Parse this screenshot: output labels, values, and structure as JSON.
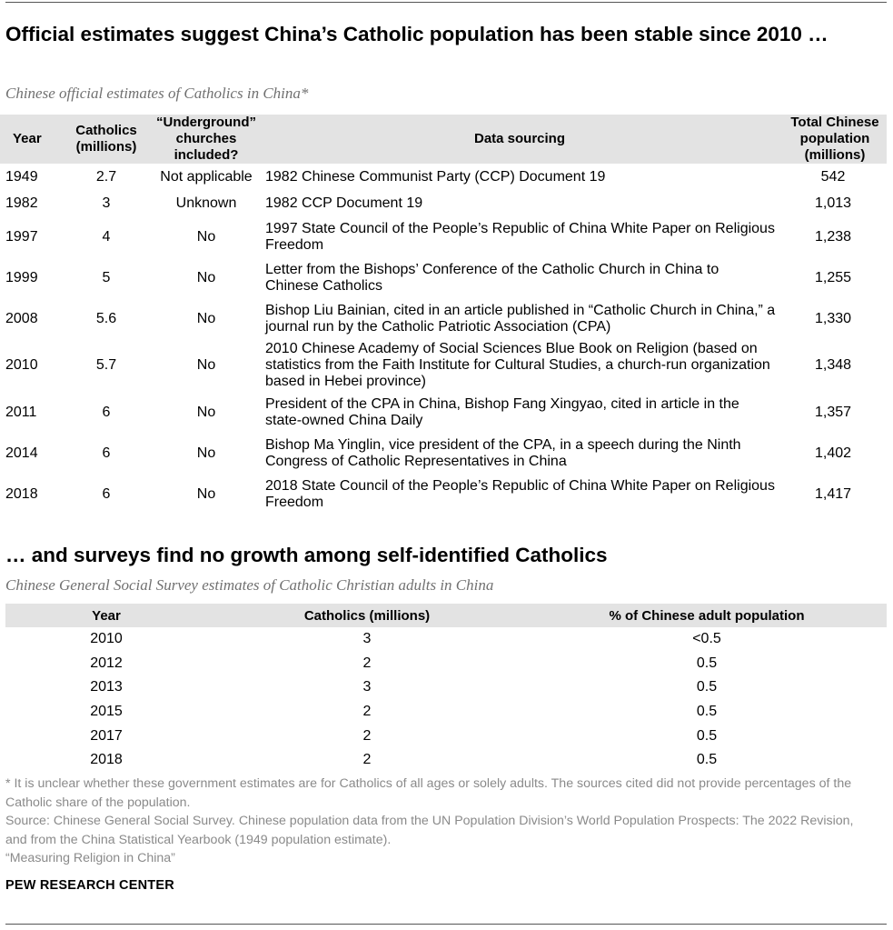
{
  "title": "Official estimates suggest China’s Catholic population has been stable since 2010 …",
  "subtitle": "Chinese official estimates of Catholics in China*",
  "official_table": {
    "headers": {
      "year": "Year",
      "catholics_line1": "Catholics",
      "catholics_line2": "(millions)",
      "underground_line1": "“Underground”",
      "underground_line2": "churches",
      "underground_line3": "included?",
      "sourcing": "Data sourcing",
      "pop_line1": "Total Chinese",
      "pop_line2": "population",
      "pop_line3": "(millions)"
    },
    "rows": [
      {
        "year": "1949",
        "catholics": "2.7",
        "underground": "Not applicable",
        "source": "1982 Chinese Communist Party (CCP) Document 19",
        "population": "542"
      },
      {
        "year": "1982",
        "catholics": "3",
        "underground": "Unknown",
        "source": "1982 CCP Document 19",
        "population": "1,013"
      },
      {
        "year": "1997",
        "catholics": "4",
        "underground": "No",
        "source": "1997 State Council of the People’s Republic of China White Paper on Religious Freedom",
        "population": "1,238"
      },
      {
        "year": "1999",
        "catholics": "5",
        "underground": "No",
        "source": "Letter from the Bishops’ Conference of the Catholic Church in China to Chinese Catholics",
        "population": "1,255"
      },
      {
        "year": "2008",
        "catholics": "5.6",
        "underground": "No",
        "source": "Bishop Liu Bainian, cited in an article published in “Catholic Church in China,” a journal run by the Catholic Patriotic Association (CPA)",
        "population": "1,330"
      },
      {
        "year": "2010",
        "catholics": "5.7",
        "underground": "No",
        "source": "2010 Chinese Academy of Social Sciences Blue Book on Religion (based on statistics from the Faith Institute for Cultural Studies, a church-run organization based in Hebei province)",
        "population": "1,348"
      },
      {
        "year": "2011",
        "catholics": "6",
        "underground": "No",
        "source": "President of the CPA in China, Bishop Fang Xingyao, cited in article in the state-owned China Daily",
        "population": "1,357"
      },
      {
        "year": "2014",
        "catholics": "6",
        "underground": "No",
        "source": "Bishop Ma Yinglin, vice president of the CPA, in a speech during the Ninth Congress of Catholic Representatives in China",
        "population": "1,402"
      },
      {
        "year": "2018",
        "catholics": "6",
        "underground": "No",
        "source": "2018 State Council of the People’s Republic of China White Paper on Religious Freedom",
        "population": "1,417"
      }
    ]
  },
  "title2": "… and surveys find no growth among self-identified Catholics",
  "subtitle2": "Chinese General Social Survey estimates of Catholic Christian adults in China",
  "survey_table": {
    "headers": {
      "year": "Year",
      "catholics": "Catholics (millions)",
      "percent": "% of Chinese adult population"
    },
    "rows": [
      {
        "year": "2010",
        "catholics": "3",
        "percent": "<0.5"
      },
      {
        "year": "2012",
        "catholics": "2",
        "percent": "0.5"
      },
      {
        "year": "2013",
        "catholics": "3",
        "percent": "0.5"
      },
      {
        "year": "2015",
        "catholics": "2",
        "percent": "0.5"
      },
      {
        "year": "2017",
        "catholics": "2",
        "percent": "0.5"
      },
      {
        "year": "2018",
        "catholics": "2",
        "percent": "0.5"
      }
    ]
  },
  "notes": {
    "footnote": "* It is unclear whether these government estimates are for Catholics of all ages or solely adults. The sources cited did not provide percentages of the Catholic share of the population.",
    "source": "Source: Chinese General Social Survey. Chinese population data from the UN Population Division’s World Population Prospects: The 2022 Revision, and from the China Statistical Yearbook (1949 population estimate).",
    "report": "“Measuring Religion in China”"
  },
  "brand": "PEW RESEARCH CENTER",
  "colors": {
    "header_bg": "#e3e3e3",
    "subtitle_text": "#707070",
    "notes_text": "#8a8a8a"
  }
}
